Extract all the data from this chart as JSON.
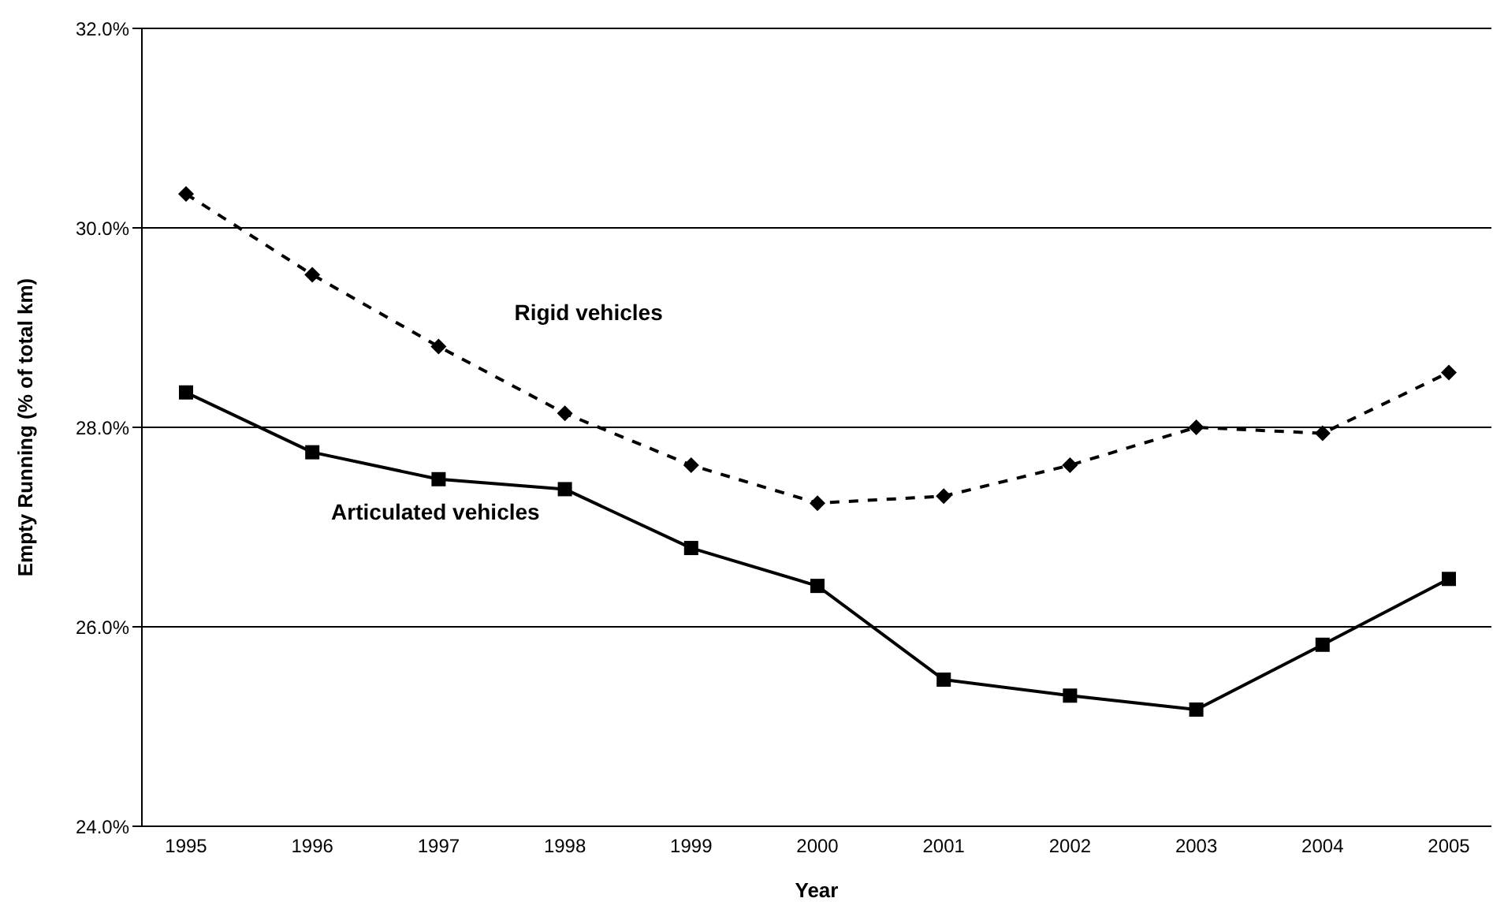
{
  "chart_data": {
    "type": "line",
    "xlabel": "Year",
    "ylabel": "Empty Running (% of total km)",
    "categories": [
      "1995",
      "1996",
      "1997",
      "1998",
      "1999",
      "2000",
      "2001",
      "2002",
      "2003",
      "2004",
      "2005"
    ],
    "series": [
      {
        "name": "Rigid vehicles",
        "color": "#000000",
        "marker": "diamond",
        "line_style": "dashed",
        "values": [
          30.34,
          29.53,
          28.81,
          28.14,
          27.62,
          27.24,
          27.31,
          27.62,
          28.0,
          27.94,
          28.55
        ]
      },
      {
        "name": "Articulated vehicles",
        "color": "#000000",
        "marker": "square",
        "line_style": "solid",
        "values": [
          28.35,
          27.75,
          27.48,
          27.38,
          26.79,
          26.41,
          25.47,
          25.31,
          25.17,
          25.82,
          26.48
        ]
      }
    ],
    "ylim": [
      24,
      32
    ],
    "yticks": [
      {
        "value": 24,
        "label": "24.0%"
      },
      {
        "value": 26,
        "label": "26.0%"
      },
      {
        "value": 28,
        "label": "28.0%"
      },
      {
        "value": 30,
        "label": "30.0%"
      },
      {
        "value": 32,
        "label": "32.0%"
      }
    ],
    "grid": "y"
  }
}
